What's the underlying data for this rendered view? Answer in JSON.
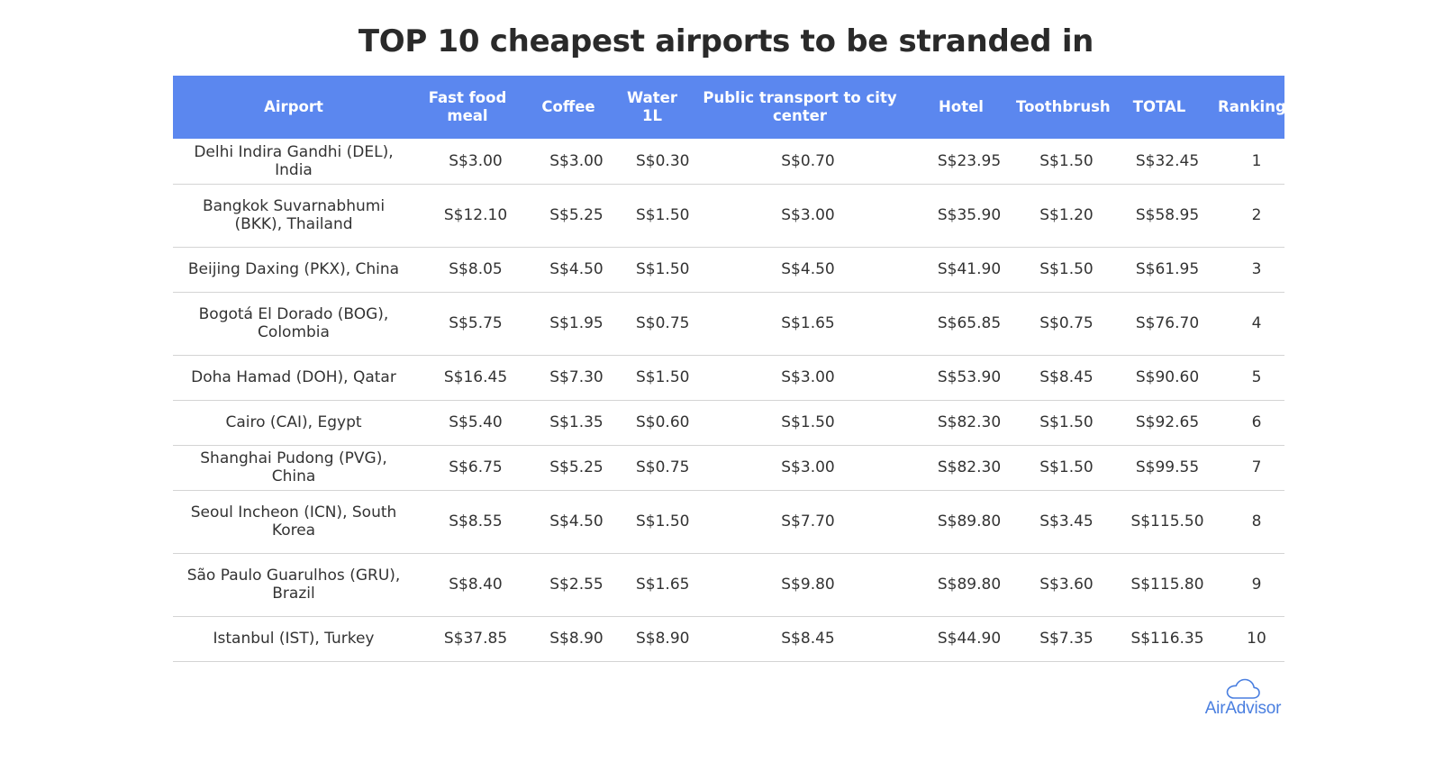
{
  "title": "TOP 10 cheapest airports to be stranded in",
  "columns": [
    "Airport",
    "Fast food meal",
    "Coffee",
    "Water 1L",
    "Public transport to city center",
    "Hotel",
    "Toothbrush",
    "TOTAL",
    "Ranking"
  ],
  "rows": [
    {
      "airport": "Delhi Indira Gandhi (DEL), India",
      "fast_food": "S$3.00",
      "coffee": "S$3.00",
      "water": "S$0.30",
      "transport": "S$0.70",
      "hotel": "S$23.95",
      "toothbrush": "S$1.50",
      "total": "S$32.45",
      "ranking": "1"
    },
    {
      "airport": "Bangkok Suvarnabhumi (BKK), Thailand",
      "fast_food": "S$12.10",
      "coffee": "S$5.25",
      "water": "S$1.50",
      "transport": "S$3.00",
      "hotel": "S$35.90",
      "toothbrush": "S$1.20",
      "total": "S$58.95",
      "ranking": "2"
    },
    {
      "airport": "Beijing Daxing (PKX), China",
      "fast_food": "S$8.05",
      "coffee": "S$4.50",
      "water": "S$1.50",
      "transport": "S$4.50",
      "hotel": "S$41.90",
      "toothbrush": "S$1.50",
      "total": "S$61.95",
      "ranking": "3"
    },
    {
      "airport": "Bogotá El Dorado (BOG), Colombia",
      "fast_food": "S$5.75",
      "coffee": "S$1.95",
      "water": "S$0.75",
      "transport": "S$1.65",
      "hotel": "S$65.85",
      "toothbrush": "S$0.75",
      "total": "S$76.70",
      "ranking": "4"
    },
    {
      "airport": "Doha Hamad (DOH), Qatar",
      "fast_food": "S$16.45",
      "coffee": "S$7.30",
      "water": "S$1.50",
      "transport": "S$3.00",
      "hotel": "S$53.90",
      "toothbrush": "S$8.45",
      "total": "S$90.60",
      "ranking": "5"
    },
    {
      "airport": "Cairo (CAI), Egypt",
      "fast_food": "S$5.40",
      "coffee": "S$1.35",
      "water": "S$0.60",
      "transport": "S$1.50",
      "hotel": "S$82.30",
      "toothbrush": "S$1.50",
      "total": "S$92.65",
      "ranking": "6"
    },
    {
      "airport": "Shanghai Pudong (PVG), China",
      "fast_food": "S$6.75",
      "coffee": "S$5.25",
      "water": "S$0.75",
      "transport": "S$3.00",
      "hotel": "S$82.30",
      "toothbrush": "S$1.50",
      "total": "S$99.55",
      "ranking": "7"
    },
    {
      "airport": "Seoul Incheon (ICN), South Korea",
      "fast_food": "S$8.55",
      "coffee": "S$4.50",
      "water": "S$1.50",
      "transport": "S$7.70",
      "hotel": "S$89.80",
      "toothbrush": "S$3.45",
      "total": "S$115.50",
      "ranking": "8"
    },
    {
      "airport": "São Paulo Guarulhos (GRU), Brazil",
      "fast_food": "S$8.40",
      "coffee": "S$2.55",
      "water": "S$1.65",
      "transport": "S$9.80",
      "hotel": "S$89.80",
      "toothbrush": "S$3.60",
      "total": "S$115.80",
      "ranking": "9"
    },
    {
      "airport": "Istanbul (IST), Turkey",
      "fast_food": "S$37.85",
      "coffee": "S$8.90",
      "water": "S$8.90",
      "transport": "S$8.45",
      "hotel": "S$44.90",
      "toothbrush": "S$7.35",
      "total": "S$116.35",
      "ranking": "10"
    }
  ],
  "logo": {
    "text": "AirAdvisor",
    "icon": "cloud-icon"
  },
  "colors": {
    "header_bg": "#5b87ef",
    "header_text": "#ffffff",
    "brand": "#4a7fe0",
    "row_divider": "#d4d4d4"
  }
}
